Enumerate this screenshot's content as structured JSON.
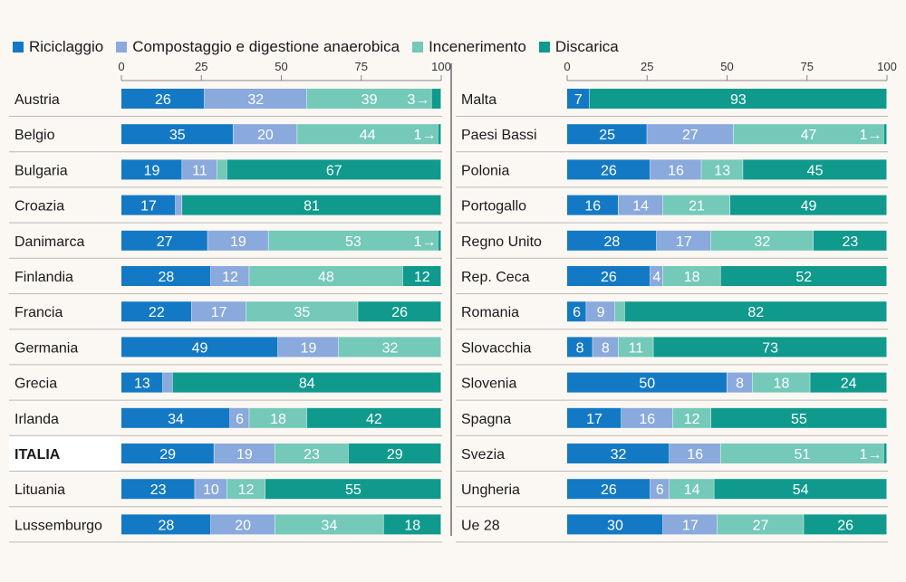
{
  "legend": {
    "items": [
      {
        "label": "Riciclaggio",
        "color": "#1479c4"
      },
      {
        "label": "Compostaggio e digestione anaerobica",
        "color": "#8aa9dc"
      },
      {
        "label": "Incenerimento",
        "color": "#74c9b9"
      },
      {
        "label": "Discarica",
        "color": "#109a8d"
      }
    ]
  },
  "chart_data": [
    {
      "type": "bar",
      "orientation": "horizontal",
      "stacked": true,
      "xlim": [
        0,
        100
      ],
      "ticks": [
        "0",
        "25",
        "50",
        "75",
        "100"
      ],
      "categories": [
        "Austria",
        "Belgio",
        "Bulgaria",
        "Croazia",
        "Danimarca",
        "Finlandia",
        "Francia",
        "Germania",
        "Grecia",
        "Irlanda",
        "ITALIA",
        "Lituania",
        "Lussemburgo"
      ],
      "series": [
        {
          "name": "Riciclaggio",
          "color": "#1479c4",
          "values": [
            26,
            35,
            19,
            17,
            27,
            28,
            22,
            49,
            13,
            34,
            29,
            23,
            28
          ]
        },
        {
          "name": "Compostaggio e digestione anaerobica",
          "color": "#8aa9dc",
          "values": [
            32,
            20,
            11,
            2,
            19,
            12,
            17,
            19,
            3,
            6,
            19,
            10,
            20
          ]
        },
        {
          "name": "Incenerimento",
          "color": "#74c9b9",
          "values": [
            39,
            44,
            3,
            0,
            53,
            48,
            35,
            32,
            0,
            18,
            23,
            12,
            34
          ]
        },
        {
          "name": "Discarica",
          "color": "#109a8d",
          "values": [
            3,
            1,
            67,
            81,
            1,
            12,
            26,
            0,
            84,
            42,
            29,
            55,
            18
          ]
        }
      ],
      "bold_category": "ITALIA"
    },
    {
      "type": "bar",
      "orientation": "horizontal",
      "stacked": true,
      "xlim": [
        0,
        100
      ],
      "ticks": [
        "0",
        "25",
        "50",
        "75",
        "100"
      ],
      "categories": [
        "Malta",
        "Paesi Bassi",
        "Polonia",
        "Portogallo",
        "Regno Unito",
        "Rep. Ceca",
        "Romania",
        "Slovacchia",
        "Slovenia",
        "Spagna",
        "Svezia",
        "Ungheria",
        "Ue 28"
      ],
      "series": [
        {
          "name": "Riciclaggio",
          "color": "#1479c4",
          "values": [
            7,
            25,
            26,
            16,
            28,
            26,
            6,
            8,
            50,
            17,
            32,
            26,
            30
          ]
        },
        {
          "name": "Compostaggio e digestione anaerobica",
          "color": "#8aa9dc",
          "values": [
            0,
            27,
            16,
            14,
            17,
            4,
            9,
            8,
            8,
            16,
            16,
            6,
            17
          ]
        },
        {
          "name": "Incenerimento",
          "color": "#74c9b9",
          "values": [
            0,
            47,
            13,
            21,
            32,
            18,
            3,
            11,
            18,
            12,
            51,
            14,
            27
          ]
        },
        {
          "name": "Discarica",
          "color": "#109a8d",
          "values": [
            93,
            1,
            45,
            49,
            23,
            52,
            82,
            73,
            24,
            55,
            1,
            54,
            26
          ]
        }
      ]
    }
  ],
  "segment_labels": [
    [
      [
        "26",
        "32",
        "39",
        "3→"
      ],
      [
        "35",
        "20",
        "44",
        "1→"
      ],
      [
        "19",
        "11",
        "←3",
        "67"
      ],
      [
        "17",
        "←2",
        "",
        "81"
      ],
      [
        "27",
        "19",
        "53",
        "1→"
      ],
      [
        "28",
        "12",
        "48",
        "12"
      ],
      [
        "22",
        "17",
        "35",
        "26"
      ],
      [
        "49",
        "19",
        "32",
        ""
      ],
      [
        "13",
        "←3",
        "",
        "84"
      ],
      [
        "34",
        "6",
        "18",
        "42"
      ],
      [
        "29",
        "19",
        "23",
        "29"
      ],
      [
        "23",
        "10",
        "12",
        "55"
      ],
      [
        "28",
        "20",
        "34",
        "18"
      ]
    ],
    [
      [
        "7",
        "",
        "",
        "93"
      ],
      [
        "25",
        "27",
        "47",
        "1→"
      ],
      [
        "26",
        "16",
        "13",
        "45"
      ],
      [
        "16",
        "14",
        "21",
        "49"
      ],
      [
        "28",
        "17",
        "32",
        "23"
      ],
      [
        "26",
        "4",
        "18",
        "52"
      ],
      [
        "6",
        "9",
        "←3",
        "82"
      ],
      [
        "8",
        "8",
        "11",
        "73"
      ],
      [
        "50",
        "8",
        "18",
        "24"
      ],
      [
        "17",
        "16",
        "12",
        "55"
      ],
      [
        "32",
        "16",
        "51",
        "1→"
      ],
      [
        "26",
        "6",
        "14",
        "54"
      ],
      [
        "30",
        "17",
        "27",
        "26"
      ]
    ]
  ]
}
